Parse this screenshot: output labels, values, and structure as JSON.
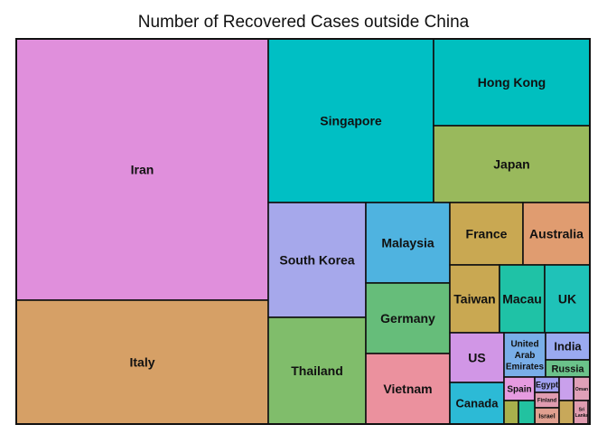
{
  "chart_data": {
    "type": "treemap",
    "title": "Number of Recovered Cases outside China",
    "cells": [
      {
        "label": "Iran",
        "color": "#e08fdc"
      },
      {
        "label": "Italy",
        "color": "#d6a066"
      },
      {
        "label": "Singapore",
        "color": "#00bfc4"
      },
      {
        "label": "Hong Kong",
        "color": "#00bfbf"
      },
      {
        "label": "Japan",
        "color": "#99b95c"
      },
      {
        "label": "South Korea",
        "color": "#a6a8eb"
      },
      {
        "label": "Thailand",
        "color": "#80bd6b"
      },
      {
        "label": "Malaysia",
        "color": "#4fb3e0"
      },
      {
        "label": "Germany",
        "color": "#66bd7a"
      },
      {
        "label": "Vietnam",
        "color": "#eb919e"
      },
      {
        "label": "France",
        "color": "#c9a852"
      },
      {
        "label": "Australia",
        "color": "#e09c70"
      },
      {
        "label": "Taiwan",
        "color": "#c9a852"
      },
      {
        "label": "Macau",
        "color": "#1fc2a6"
      },
      {
        "label": "UK",
        "color": "#1fc2b8"
      },
      {
        "label": "US",
        "color": "#d196e6"
      },
      {
        "label": "United Arab Emirates",
        "color": "#79aee8"
      },
      {
        "label": "India",
        "color": "#9aaaf0"
      },
      {
        "label": "Russia",
        "color": "#6bc28a"
      },
      {
        "label": "Canada",
        "color": "#2cbad6"
      },
      {
        "label": "Spain",
        "color": "#e69be0"
      },
      {
        "label": "Egypt",
        "color": "#a0a0f0"
      },
      {
        "label": "Finland",
        "color": "#e09cb0"
      },
      {
        "label": "Israel",
        "color": "#e0a090"
      },
      {
        "label": "Oman",
        "color": "#e0a0b8"
      },
      {
        "label": "Sri Lanka",
        "color": "#e09cb0"
      },
      {
        "label": "",
        "color": "#a8b04c"
      },
      {
        "label": "",
        "color": "#22c2a0"
      },
      {
        "label": "",
        "color": "#c9a0ec"
      },
      {
        "label": "",
        "color": "#c8a85a"
      },
      {
        "label": "",
        "color": "#e098b4"
      }
    ]
  }
}
